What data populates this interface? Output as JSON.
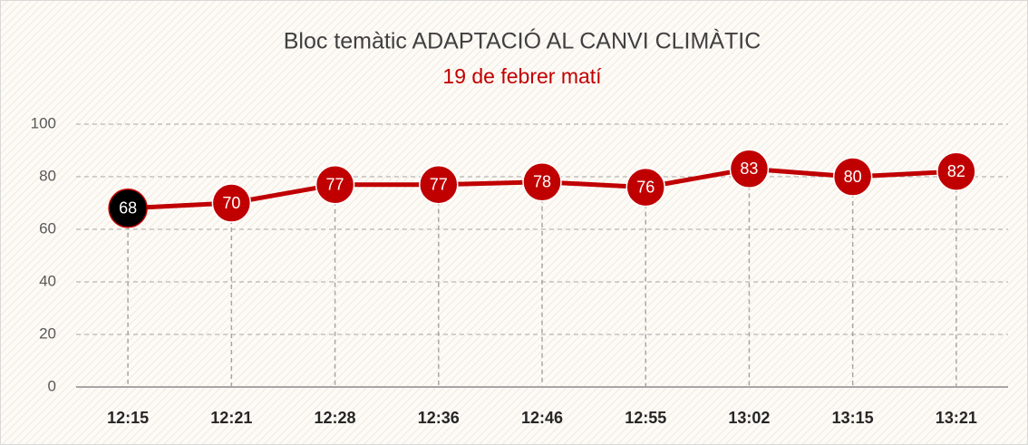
{
  "chart_data": {
    "type": "line",
    "title": "Bloc temàtic ADAPTACIÓ AL CANVI CLIMÀTIC",
    "subtitle": "19 de febrer matí",
    "categories": [
      "12:15",
      "12:21",
      "12:28",
      "12:36",
      "12:46",
      "12:55",
      "13:02",
      "13:15",
      "13:21"
    ],
    "values": [
      68,
      70,
      77,
      77,
      78,
      76,
      83,
      80,
      82
    ],
    "color": "#c00000",
    "first_point_color": "#000000",
    "ylim": [
      0,
      100
    ],
    "yticks": [
      0,
      20,
      40,
      60,
      80,
      100
    ],
    "grid": true
  }
}
